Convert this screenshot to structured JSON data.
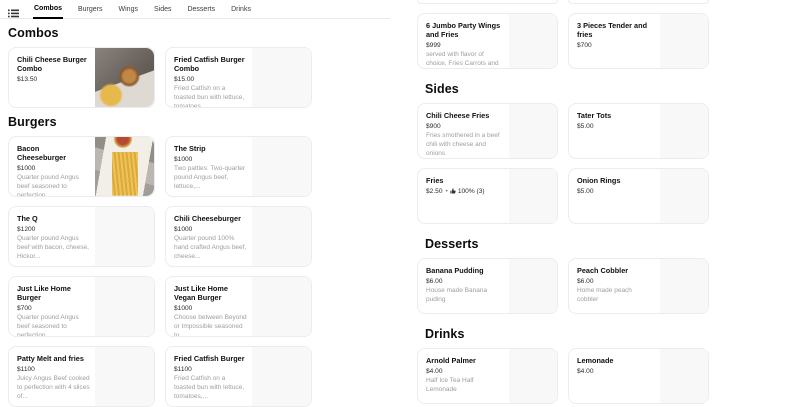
{
  "nav": {
    "menu_icon": "list-menu-icon",
    "tabs": [
      {
        "label": "Combos",
        "active": true
      },
      {
        "label": "Burgers",
        "active": false
      },
      {
        "label": "Wings",
        "active": false
      },
      {
        "label": "Sides",
        "active": false
      },
      {
        "label": "Desserts",
        "active": false
      },
      {
        "label": "Drinks",
        "active": false
      }
    ]
  },
  "colors": {
    "active_tab_underline": "#000000",
    "card_border": "#ececec",
    "placeholder_bg": "#f8f8f8",
    "description_text": "#9e9e9e"
  },
  "columns": {
    "left": {
      "sections": [
        {
          "title": "Combos",
          "items": [
            {
              "name": "Chili Cheese Burger Combo",
              "price": "$13.50",
              "desc": "",
              "image": "photo-burger-tray"
            },
            {
              "name": "Fried Catfish Burger Combo",
              "price": "$15.00",
              "desc": "Fried Catfish on a toasted bun with lettuce, tomatoes,...",
              "image": "placeholder"
            }
          ]
        },
        {
          "title": "Burgers",
          "items": [
            {
              "name": "Bacon Cheeseburger",
              "price": "$1000",
              "desc": "Quarter pound Angus beef seasoned to perfection,...",
              "image": "photo-fries-paper"
            },
            {
              "name": "The Strip",
              "price": "$1000",
              "desc": "Two patties: Two-quarter pound Angus beef, lettuce,...",
              "image": "placeholder"
            },
            {
              "name": "The Q",
              "price": "$1200",
              "desc": "Quarter pound Angus beef with bacon, cheese, Hickor...",
              "image": "placeholder"
            },
            {
              "name": "Chili Cheeseburger",
              "price": "$1000",
              "desc": "Quarter pound 100% hand crafted Angus beef, cheese...",
              "image": "placeholder"
            },
            {
              "name": "Just Like Home Burger",
              "price": "$700",
              "desc": "Quarter pound Angus beef seasoned to perfection,...",
              "image": "placeholder"
            },
            {
              "name": "Just Like Home Vegan Burger",
              "price": "$1000",
              "desc": "Choose between Beyond or Impossible seasoned to...",
              "image": "placeholder"
            },
            {
              "name": "Patty  Melt and fries",
              "price": "$1100",
              "desc": "Juicy Angus Beef cooked to perfection with 4 slices of...",
              "image": "placeholder"
            },
            {
              "name": "Fried Catfish Burger",
              "price": "$1100",
              "desc": "Fried Catfish on a toasted bun with lettuce, tomatoes,...",
              "image": "placeholder"
            }
          ]
        }
      ]
    },
    "right": {
      "sections": [
        {
          "title": "",
          "items": [
            {
              "name": "6 Jumbo Party Wings and Fries",
              "price": "$999",
              "desc": "served with flavor of choice, Fries Carrots and celery",
              "image": "placeholder"
            },
            {
              "name": "3 Pieces Tender and fries",
              "price": "$700",
              "desc": "",
              "image": "placeholder"
            }
          ]
        },
        {
          "title": "Sides",
          "items": [
            {
              "name": "Chili Cheese Fries",
              "price": "$900",
              "desc": "Fries smothered in a beef chili with cheese and onions",
              "image": "placeholder"
            },
            {
              "name": "Tater Tots",
              "price": "$5.00",
              "desc": "",
              "image": "placeholder"
            },
            {
              "name": "Fries",
              "price": "$2.50",
              "desc": "",
              "rating": "100% (3)",
              "rating_icon": "thumbs-up-icon",
              "image": "placeholder"
            },
            {
              "name": "Onion Rings",
              "price": "$5.00",
              "desc": "",
              "image": "placeholder"
            }
          ]
        },
        {
          "title": "Desserts",
          "items": [
            {
              "name": "Banana Pudding",
              "price": "$6.00",
              "desc": "House made Banana puding",
              "image": "placeholder"
            },
            {
              "name": "Peach Cobbler",
              "price": "$6.00",
              "desc": "Home made peach cobbler",
              "image": "placeholder"
            }
          ]
        },
        {
          "title": "Drinks",
          "items": [
            {
              "name": "Arnold Palmer",
              "price": "$4.00",
              "desc": "Half Ice Tea Half Lemonade",
              "image": "placeholder"
            },
            {
              "name": "Lemonade",
              "price": "$4.00",
              "desc": "",
              "image": "placeholder"
            }
          ]
        }
      ]
    }
  }
}
